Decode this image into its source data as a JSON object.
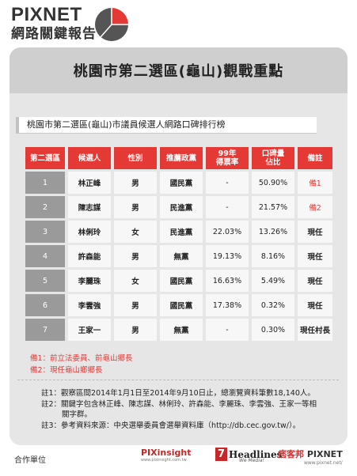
{
  "brand": {
    "line1": "PIXNET",
    "line2": "網路關鍵報告"
  },
  "title": "桃園市第二選區(龜山)觀戰重點",
  "subtitle": "桃園市第二選區(龜山)市議員候選人網路口碑排行榜",
  "table": {
    "headers": [
      "第二選區",
      "候選人",
      "性別",
      "推薦政黨",
      "99年\n得票率",
      "口碑量\n佔比",
      "備註"
    ],
    "rows": [
      {
        "rank": "1",
        "name": "林正峰",
        "gender": "男",
        "party": "國民黨",
        "vote99": "-",
        "share": "50.90%",
        "note": "備1"
      },
      {
        "rank": "2",
        "name": "陳志謀",
        "gender": "男",
        "party": "民進黨",
        "vote99": "-",
        "share": "21.57%",
        "note": "備2"
      },
      {
        "rank": "3",
        "name": "林俐玲",
        "gender": "女",
        "party": "民進黨",
        "vote99": "22.03%",
        "share": "13.26%",
        "note": "現任"
      },
      {
        "rank": "4",
        "name": "許森能",
        "gender": "男",
        "party": "無黨",
        "vote99": "19.13%",
        "share": "8.16%",
        "note": "現任"
      },
      {
        "rank": "5",
        "name": "李麗珠",
        "gender": "女",
        "party": "國民黨",
        "vote99": "16.63%",
        "share": "5.49%",
        "note": "現任"
      },
      {
        "rank": "6",
        "name": "李雲強",
        "gender": "男",
        "party": "國民黨",
        "vote99": "17.38%",
        "share": "0.32%",
        "note": "現任"
      },
      {
        "rank": "7",
        "name": "王家一",
        "gender": "男",
        "party": "無黨",
        "vote99": "-",
        "share": "0.30%",
        "note": "現任村長"
      }
    ]
  },
  "red_notes": [
    "備1：前立法委員、前龜山鄉長",
    "備2：現任龜山鄉鄉長"
  ],
  "footnotes": [
    "註1：觀察區間2014年1月1日至2014年9月10日止，總瀏覽資料筆數18,140人。",
    "註2：關鍵字包含林正峰、陳志謀、林俐玲、許森能、李麗珠、李雲強、王家一等相關字群。",
    "註3：參考資料來源：中央選舉委員會選舉資料庫（http://db.cec.gov.tw/）。"
  ],
  "footer": {
    "label": "合作單位",
    "pixinsight": "PIXinsight",
    "pixinsight_url": "www.pixinsight.com.tw",
    "headlines_num": "7",
    "headlines": "Headlines",
    "headlines_tag": "We Media!",
    "pixnet_cn": "痞客邦",
    "pixnet": "PIXNET",
    "pixnet_url": "www.pixnet.net/"
  },
  "colors": {
    "accent_red": "#e53935",
    "header_gray": "#cfcfcf",
    "panel_gray": "#e6e6e6",
    "rank_gray": "#9a9a9a",
    "pie_dark": "#555555",
    "pie_red": "#e53935"
  }
}
